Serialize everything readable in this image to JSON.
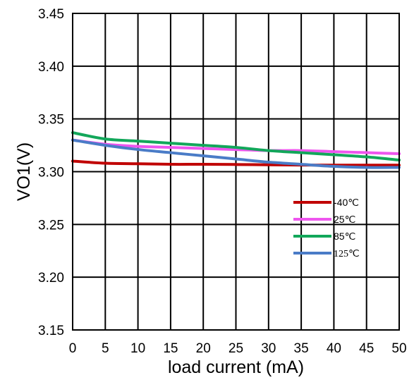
{
  "chart_data": {
    "type": "line",
    "title": "",
    "xlabel": "load current (mA)",
    "ylabel": "VO1(V)",
    "xlim": [
      0,
      50
    ],
    "ylim": [
      3.15,
      3.45
    ],
    "x_ticks": [
      "0",
      "5",
      "10",
      "15",
      "20",
      "25",
      "30",
      "35",
      "40",
      "45",
      "50"
    ],
    "y_ticks": [
      "3.15",
      "3.20",
      "3.25",
      "3.30",
      "3.35",
      "3.40",
      "3.45"
    ],
    "grid": true,
    "legend_position": "lower-right",
    "x": [
      0,
      5,
      10,
      15,
      20,
      25,
      30,
      35,
      40,
      45,
      50
    ],
    "series": [
      {
        "name": "-40℃",
        "color": "#c00000",
        "values": [
          3.31,
          3.308,
          3.3075,
          3.307,
          3.307,
          3.3068,
          3.3065,
          3.3063,
          3.3062,
          3.3062,
          3.3062
        ]
      },
      {
        "name": "25℃",
        "color": "#ee55ee",
        "values": [
          3.33,
          3.326,
          3.324,
          3.323,
          3.322,
          3.321,
          3.32,
          3.32,
          3.319,
          3.318,
          3.317
        ]
      },
      {
        "name": "85℃",
        "color": "#12a75a",
        "values": [
          3.337,
          3.331,
          3.329,
          3.327,
          3.325,
          3.323,
          3.32,
          3.318,
          3.316,
          3.314,
          3.311
        ]
      },
      {
        "name": "125℃",
        "color": "#4a7cc7",
        "values": [
          3.33,
          3.325,
          3.321,
          3.318,
          3.315,
          3.312,
          3.309,
          3.307,
          3.305,
          3.304,
          3.304
        ]
      }
    ]
  }
}
